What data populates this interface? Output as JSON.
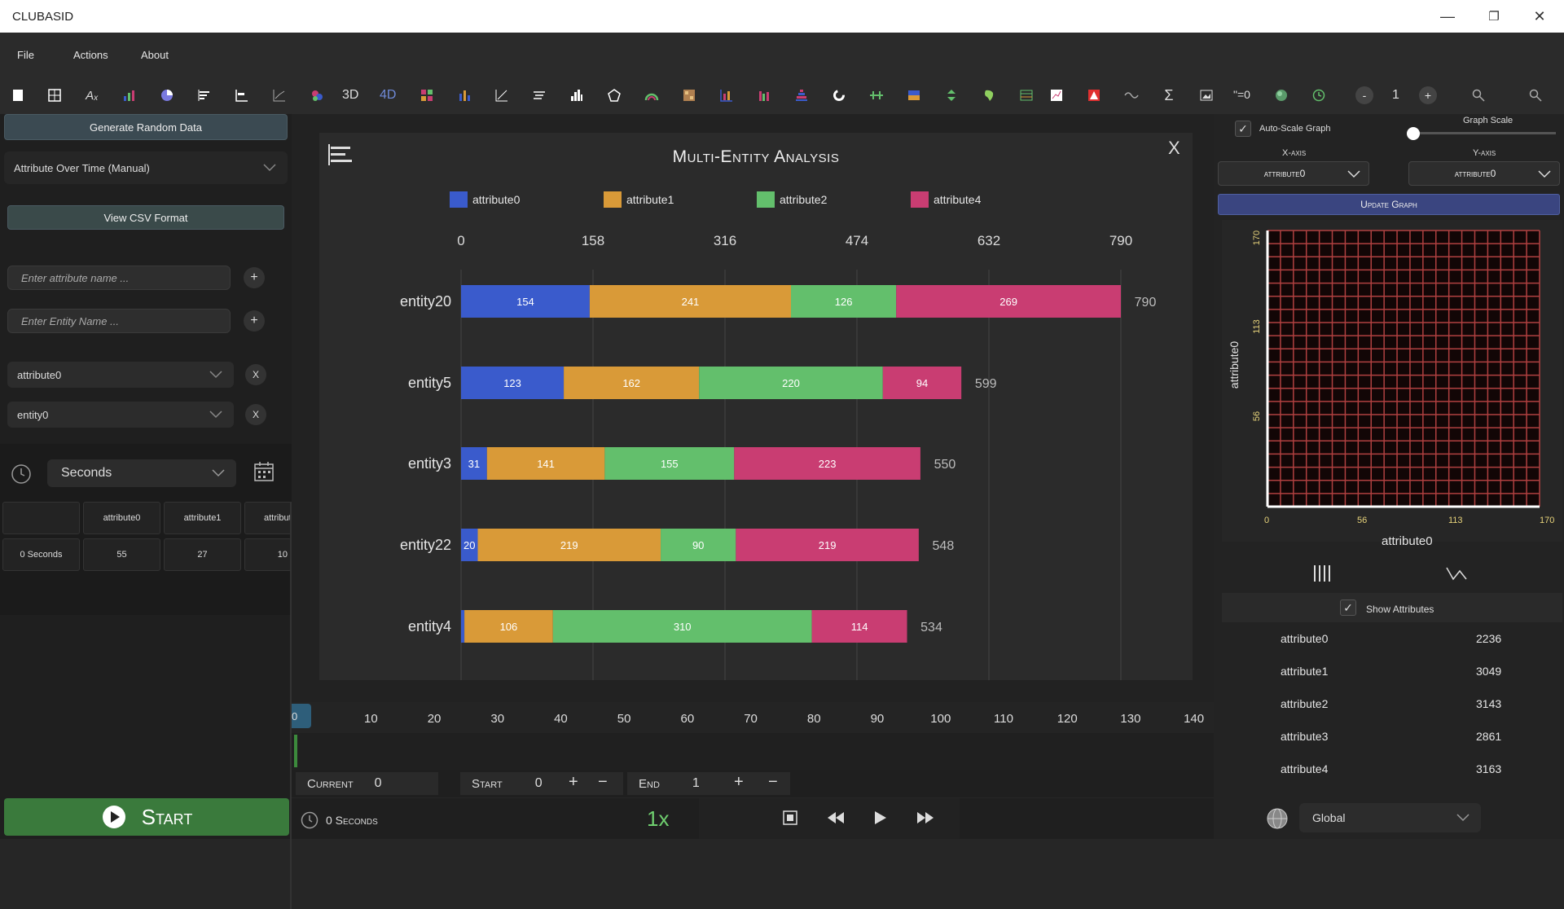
{
  "window": {
    "title": "CLUBASID",
    "minimize": "—",
    "restore": "❐",
    "close": "✕"
  },
  "menu": {
    "file": "File",
    "actions": "Actions",
    "about": "About"
  },
  "toolbar": {
    "icons": [
      "new-file-icon",
      "grid-icon",
      "attribute-icon",
      "bar-chart-icon",
      "pie-icon",
      "sorted-bars-icon",
      "horizontal-bars-icon",
      "line-chart-icon",
      "bubble-icon",
      "3d-label",
      "4d-label",
      "heatmap-icon",
      "column-icon",
      "line-axis-icon",
      "stream-icon",
      "histogram-icon",
      "polygon-icon",
      "arc-icon",
      "pattern-icon",
      "stacked-icon",
      "grouped-icon",
      "pyramid-icon",
      "donut-icon",
      "error-bar-icon",
      "gradient-icon",
      "diverge-icon",
      "map-icon",
      "table-icon",
      "scatter-icon",
      "alert-icon",
      "wave-icon",
      "sigma-icon",
      "image-icon",
      "equation-label",
      "color-icon",
      "clock-icon"
    ],
    "label_3d": "3D",
    "label_4d": "4D",
    "equation": "\"=0",
    "zoom_value": "1",
    "minus": "-",
    "plus": "+"
  },
  "left": {
    "generate_button": "Generate Random Data",
    "mode_select": "Attribute Over Time (Manual)",
    "csv_button": "View CSV Format",
    "attr_name_placeholder": "Enter attribute name ...",
    "entity_name_placeholder": "Enter Entity Name ...",
    "attr_select": "attribute0",
    "entity_select": "entity0",
    "time_unit": "Seconds",
    "table": {
      "headers": [
        "",
        "attribute0",
        "attribute1",
        "attribut"
      ],
      "row": [
        "0 Seconds",
        "55",
        "27",
        "10"
      ]
    },
    "start_button": "Start"
  },
  "chart_data": {
    "type": "bar",
    "orientation": "horizontal-stacked",
    "title": "Multi-Entity Analysis",
    "categories": [
      "entity20",
      "entity5",
      "entity3",
      "entity22",
      "entity4"
    ],
    "series": [
      {
        "name": "attribute0",
        "color": "#3a5bcc",
        "values": [
          154,
          123,
          31,
          20,
          4
        ]
      },
      {
        "name": "attribute1",
        "color": "#d99a38",
        "values": [
          241,
          162,
          141,
          219,
          106
        ]
      },
      {
        "name": "attribute2",
        "color": "#63bf6c",
        "values": [
          126,
          220,
          155,
          90,
          310
        ]
      },
      {
        "name": "attribute4",
        "color": "#c93d72",
        "values": [
          269,
          94,
          223,
          219,
          114
        ]
      }
    ],
    "totals": [
      790,
      599,
      550,
      548,
      534
    ],
    "x_ticks": [
      0,
      158,
      316,
      474,
      632,
      790
    ],
    "xlim": [
      0,
      790
    ],
    "close_label": "X"
  },
  "timeline": {
    "ticks": [
      "10",
      "20",
      "30",
      "40",
      "50",
      "60",
      "70",
      "80",
      "90",
      "100",
      "110",
      "120",
      "130",
      "140"
    ],
    "marker": "0",
    "current_label": "Current",
    "current_value": "0",
    "start_label": "Start",
    "start_value": "0",
    "end_label": "End",
    "end_value": "1",
    "elapsed": "0 Seconds",
    "speed": "1x"
  },
  "right": {
    "auto_scale_label": "Auto-Scale Graph",
    "graph_scale_label": "Graph Scale",
    "x_axis_label": "X-axis",
    "y_axis_label": "Y-axis",
    "x_axis_value": "attribute0",
    "y_axis_value": "attribute0",
    "update_button": "Update Graph",
    "mini_x_ticks": [
      "0",
      "56",
      "113",
      "170"
    ],
    "mini_y_ticks": [
      "170",
      "113",
      "56"
    ],
    "mini_x_title": "attribute0",
    "mini_y_title": "attribute0",
    "show_attributes_label": "Show Attributes",
    "attributes": [
      {
        "name": "attribute0",
        "value": "2236"
      },
      {
        "name": "attribute1",
        "value": "3049"
      },
      {
        "name": "attribute2",
        "value": "3143"
      },
      {
        "name": "attribute3",
        "value": "2861"
      },
      {
        "name": "attribute4",
        "value": "3163"
      }
    ],
    "region_select": "Global"
  }
}
